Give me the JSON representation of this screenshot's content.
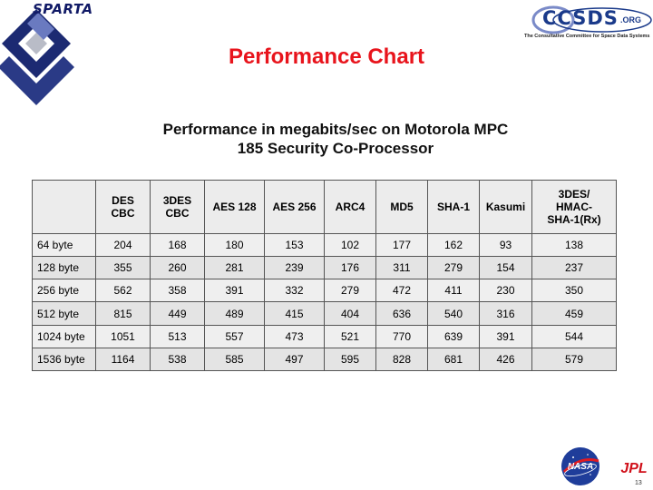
{
  "header": {
    "sparta_logo_text": "SPARTA",
    "ccsds_logo_text": "CCSDS",
    "ccsds_domain": ".ORG",
    "ccsds_tagline": "The Consultative Committee for Space Data Systems"
  },
  "slide": {
    "title": "Performance Chart",
    "subtitle_line1": "Performance in megabits/sec on Motorola MPC",
    "subtitle_line2": "185 Security Co-Processor",
    "page_number": "13"
  },
  "table": {
    "columns": [
      [
        "DES",
        "CBC"
      ],
      [
        "3DES",
        "CBC"
      ],
      [
        "AES 128"
      ],
      [
        "AES 256"
      ],
      [
        "ARC4"
      ],
      [
        "MD5"
      ],
      [
        "SHA-1"
      ],
      [
        "Kasumi"
      ],
      [
        "3DES/",
        "HMAC-",
        "SHA-1(Rx)"
      ]
    ],
    "rows": [
      {
        "label": "64 byte",
        "values": [
          "204",
          "168",
          "180",
          "153",
          "102",
          "177",
          "162",
          "93",
          "138"
        ]
      },
      {
        "label": "128 byte",
        "values": [
          "355",
          "260",
          "281",
          "239",
          "176",
          "311",
          "279",
          "154",
          "237"
        ]
      },
      {
        "label": "256 byte",
        "values": [
          "562",
          "358",
          "391",
          "332",
          "279",
          "472",
          "411",
          "230",
          "350"
        ]
      },
      {
        "label": "512 byte",
        "values": [
          "815",
          "449",
          "489",
          "415",
          "404",
          "636",
          "540",
          "316",
          "459"
        ]
      },
      {
        "label": "1024 byte",
        "values": [
          "1051",
          "513",
          "557",
          "473",
          "521",
          "770",
          "639",
          "391",
          "544"
        ]
      },
      {
        "label": "1536 byte",
        "values": [
          "1164",
          "538",
          "585",
          "497",
          "595",
          "828",
          "681",
          "426",
          "579"
        ]
      }
    ]
  },
  "footer": {
    "nasa_logo_text": "NASA",
    "jpl_logo_text": "JPL"
  },
  "colors": {
    "title": "#e8141c",
    "sparta_blue": "#111a66",
    "ccsds_blue": "#1a3a8a",
    "jpl_red": "#d0101a"
  }
}
